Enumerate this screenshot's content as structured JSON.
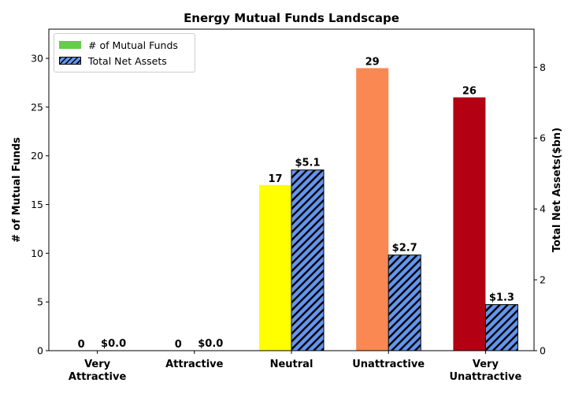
{
  "chart_data": {
    "type": "bar",
    "title": "Energy Mutual Funds Landscape",
    "categories": [
      [
        "Very",
        "Attractive"
      ],
      [
        "Attractive"
      ],
      [
        "Neutral"
      ],
      [
        "Unattractive"
      ],
      [
        "Very",
        "Unattractive"
      ]
    ],
    "ylabel_left": "# of Mutual Funds",
    "ylabel_right": "Total Net Assets($bn)",
    "ylim_left": [
      0,
      33
    ],
    "ylim_right": [
      0,
      9.075
    ],
    "yticks_left": [
      0,
      5,
      10,
      15,
      20,
      25,
      30
    ],
    "yticks_right": [
      0,
      2,
      4,
      6,
      8
    ],
    "grid": false,
    "legend_placement": "top-left",
    "series": [
      {
        "name": "# of Mutual Funds",
        "axis": "left",
        "values": [
          0,
          0,
          17,
          29,
          26
        ],
        "labels": [
          "0",
          "0",
          "17",
          "29",
          "26"
        ],
        "colors": [
          "#66cc4c",
          "#66cc4c",
          "#ffff00",
          "#f98853",
          "#b30012"
        ]
      },
      {
        "name": "Total Net Assets",
        "axis": "right",
        "values": [
          0.0,
          0.0,
          5.1,
          2.7,
          1.3
        ],
        "labels": [
          "$0.0",
          "$0.0",
          "$5.1",
          "$2.7",
          "$1.3"
        ],
        "color": "#6495ed",
        "hatch": "diagonal"
      }
    ]
  }
}
